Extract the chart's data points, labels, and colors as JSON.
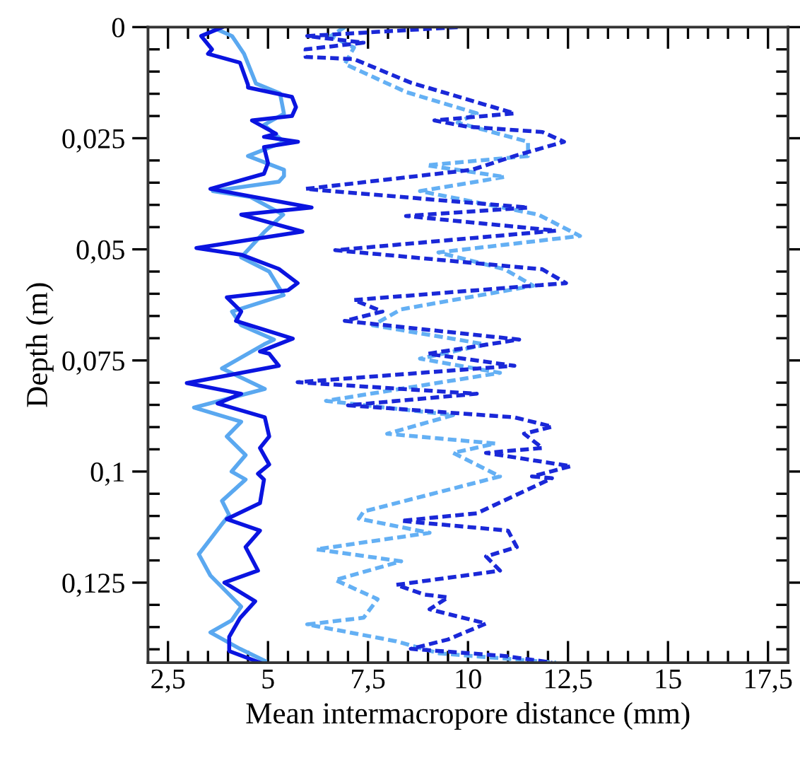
{
  "chart_data": {
    "type": "line",
    "xlabel": "Mean intermacropore distance (mm)",
    "ylabel": "Depth (m)",
    "xlim": [
      2,
      18
    ],
    "ylim": [
      0.143,
      0
    ],
    "xticks": [
      {
        "value": 2.5,
        "label": "2,5"
      },
      {
        "value": 3,
        "label": null
      },
      {
        "value": 3.5,
        "label": null
      },
      {
        "value": 4,
        "label": null
      },
      {
        "value": 4.5,
        "label": null
      },
      {
        "value": 5,
        "label": "5"
      },
      {
        "value": 5.5,
        "label": null
      },
      {
        "value": 6,
        "label": null
      },
      {
        "value": 6.5,
        "label": null
      },
      {
        "value": 7,
        "label": null
      },
      {
        "value": 7.5,
        "label": "7,5"
      },
      {
        "value": 8,
        "label": null
      },
      {
        "value": 8.5,
        "label": null
      },
      {
        "value": 9,
        "label": null
      },
      {
        "value": 9.5,
        "label": null
      },
      {
        "value": 10,
        "label": "10"
      },
      {
        "value": 10.5,
        "label": null
      },
      {
        "value": 11,
        "label": null
      },
      {
        "value": 11.5,
        "label": null
      },
      {
        "value": 12,
        "label": null
      },
      {
        "value": 12.5,
        "label": "12,5"
      },
      {
        "value": 13,
        "label": null
      },
      {
        "value": 13.5,
        "label": null
      },
      {
        "value": 14,
        "label": null
      },
      {
        "value": 14.5,
        "label": null
      },
      {
        "value": 15,
        "label": "15"
      },
      {
        "value": 15.5,
        "label": null
      },
      {
        "value": 16,
        "label": null
      },
      {
        "value": 16.5,
        "label": null
      },
      {
        "value": 17,
        "label": null
      },
      {
        "value": 17.5,
        "label": "17,5"
      }
    ],
    "yticks": [
      {
        "value": 0,
        "label": "0"
      },
      {
        "value": 0.005,
        "label": null
      },
      {
        "value": 0.01,
        "label": null
      },
      {
        "value": 0.015,
        "label": null
      },
      {
        "value": 0.02,
        "label": null
      },
      {
        "value": 0.025,
        "label": "0,025"
      },
      {
        "value": 0.03,
        "label": null
      },
      {
        "value": 0.035,
        "label": null
      },
      {
        "value": 0.04,
        "label": null
      },
      {
        "value": 0.045,
        "label": null
      },
      {
        "value": 0.05,
        "label": "0,05"
      },
      {
        "value": 0.055,
        "label": null
      },
      {
        "value": 0.06,
        "label": null
      },
      {
        "value": 0.065,
        "label": null
      },
      {
        "value": 0.07,
        "label": null
      },
      {
        "value": 0.075,
        "label": "0,075"
      },
      {
        "value": 0.08,
        "label": null
      },
      {
        "value": 0.085,
        "label": null
      },
      {
        "value": 0.09,
        "label": null
      },
      {
        "value": 0.095,
        "label": null
      },
      {
        "value": 0.1,
        "label": "0,1"
      },
      {
        "value": 0.105,
        "label": null
      },
      {
        "value": 0.11,
        "label": null
      },
      {
        "value": 0.115,
        "label": null
      },
      {
        "value": 0.12,
        "label": null
      },
      {
        "value": 0.125,
        "label": "0,125"
      },
      {
        "value": 0.13,
        "label": null
      },
      {
        "value": 0.135,
        "label": null
      },
      {
        "value": 0.14,
        "label": null
      }
    ],
    "grid": false,
    "legend": false,
    "marker": "none",
    "series": [
      {
        "color": "#5aa8f0",
        "line_style": "solid",
        "x": [
          3.6,
          4.1,
          4.4,
          4.7,
          5.3,
          5.4,
          4.9,
          5.4,
          4.5,
          5.4,
          5.4,
          5.27,
          3.62,
          4.56,
          5.38,
          4.92,
          4.33,
          5.03,
          5.39,
          4.1,
          4.33,
          5.15,
          4.9,
          3.85,
          4.92,
          3.15,
          4.33,
          3.97,
          4.44,
          4.09,
          4.44,
          3.85,
          4.03,
          3.86,
          3.27,
          3.56,
          4.33,
          4.09,
          3.56,
          4.3,
          4.92
        ],
        "values": [
          0,
          0.002,
          0.006,
          0.0127,
          0.0149,
          0.0195,
          0.022,
          0.0258,
          0.029,
          0.0321,
          0.0335,
          0.0348,
          0.0369,
          0.0382,
          0.0422,
          0.046,
          0.0518,
          0.055,
          0.0603,
          0.064,
          0.0671,
          0.0703,
          0.0714,
          0.0768,
          0.0814,
          0.0856,
          0.0888,
          0.0921,
          0.0963,
          0.1,
          0.1018,
          0.1066,
          0.1098,
          0.1117,
          0.1186,
          0.1234,
          0.1304,
          0.1335,
          0.1362,
          0.1399,
          0.1426
        ]
      },
      {
        "color": "#0a14e0",
        "line_style": "solid",
        "x": [
          3.86,
          3.33,
          3.6,
          3.5,
          4.3,
          4.5,
          4.5,
          5.6,
          5.7,
          5.6,
          4.6,
          5.2,
          4.9,
          5.75,
          4.9,
          5.0,
          4.9,
          3.56,
          6.09,
          4.33,
          5.86,
          3.21,
          4.33,
          5.27,
          5.74,
          5.5,
          3.97,
          4.33,
          4.2,
          5.62,
          4.8,
          5.03,
          5.27,
          2.97,
          4.33,
          3.74,
          4.92,
          5.03,
          4.8,
          5.03,
          4.75,
          4.9,
          4.8,
          3.97,
          4.8,
          4.44,
          4.75,
          3.91,
          4.68,
          4.3,
          4.03,
          4.03,
          4.8
        ],
        "values": [
          0,
          0.002,
          0.005,
          0.006,
          0.008,
          0.013,
          0.0136,
          0.0157,
          0.018,
          0.02,
          0.021,
          0.024,
          0.0247,
          0.0258,
          0.027,
          0.0306,
          0.033,
          0.0364,
          0.0406,
          0.0422,
          0.046,
          0.0497,
          0.0512,
          0.0544,
          0.0576,
          0.0592,
          0.0608,
          0.064,
          0.0661,
          0.0701,
          0.073,
          0.0735,
          0.0762,
          0.0801,
          0.0825,
          0.0847,
          0.0878,
          0.0921,
          0.0947,
          0.0984,
          0.1005,
          0.1018,
          0.1071,
          0.1107,
          0.1133,
          0.117,
          0.1223,
          0.125,
          0.1292,
          0.133,
          0.1372,
          0.1404,
          0.143
        ]
      },
      {
        "color": "#64b0f4",
        "line_style": "dashed",
        "x": [
          6.92,
          6.57,
          7.15,
          6.92,
          8.45,
          10.22,
          9.74,
          11.5,
          11.5,
          8.97,
          10.92,
          8.8,
          11.76,
          12.8,
          9.26,
          10.92,
          11.63,
          8.33,
          7.62,
          10.45,
          8.8,
          10.8,
          6.45,
          9.63,
          7.98,
          10.68,
          9.63,
          10.8,
          7.39,
          7.27,
          9.04,
          6.21,
          8.33,
          6.68,
          7.74,
          7.39,
          5.98,
          8.21,
          9.27,
          12.2
        ],
        "values": [
          0,
          0.002,
          0.0046,
          0.0083,
          0.0146,
          0.0194,
          0.0215,
          0.0258,
          0.029,
          0.0311,
          0.0337,
          0.0369,
          0.0422,
          0.047,
          0.0507,
          0.0545,
          0.0582,
          0.0635,
          0.0671,
          0.0714,
          0.0746,
          0.0778,
          0.0841,
          0.0873,
          0.0915,
          0.0937,
          0.0958,
          0.1011,
          0.109,
          0.1106,
          0.1138,
          0.1175,
          0.1202,
          0.1244,
          0.1287,
          0.1329,
          0.1344,
          0.1382,
          0.1409,
          0.143
        ]
      },
      {
        "color": "#1a28d8",
        "line_style": "dashed",
        "x": [
          9.74,
          5.98,
          7.39,
          5.94,
          5.94,
          7.15,
          8.57,
          11.16,
          9.16,
          9.98,
          11.86,
          12.4,
          11.16,
          10.1,
          5.94,
          11.5,
          8.45,
          12.2,
          6.68,
          11.86,
          12.45,
          7.15,
          7.86,
          6.92,
          11.28,
          9.0,
          11.16,
          5.74,
          10.22,
          7.0,
          11.16,
          12.1,
          11.4,
          11.86,
          10.45,
          12.57,
          11.6,
          12.1,
          10.22,
          8.33,
          11.0,
          11.22,
          10.45,
          10.8,
          8.21,
          8.92,
          9.5,
          9.04,
          10.45,
          9.5,
          8.57,
          10.92,
          12.1
        ],
        "values": [
          0,
          0.002,
          0.0035,
          0.005,
          0.0067,
          0.0072,
          0.0125,
          0.0194,
          0.021,
          0.0224,
          0.0236,
          0.0258,
          0.029,
          0.0321,
          0.0364,
          0.0406,
          0.0425,
          0.0458,
          0.0502,
          0.0545,
          0.0576,
          0.0614,
          0.064,
          0.0661,
          0.0703,
          0.0735,
          0.0762,
          0.0799,
          0.0825,
          0.0851,
          0.0878,
          0.0899,
          0.0915,
          0.0947,
          0.0958,
          0.0988,
          0.1011,
          0.1015,
          0.1094,
          0.1111,
          0.1133,
          0.117,
          0.1191,
          0.1223,
          0.1255,
          0.1277,
          0.1283,
          0.131,
          0.1342,
          0.1378,
          0.1399,
          0.1415,
          0.143
        ]
      }
    ]
  }
}
